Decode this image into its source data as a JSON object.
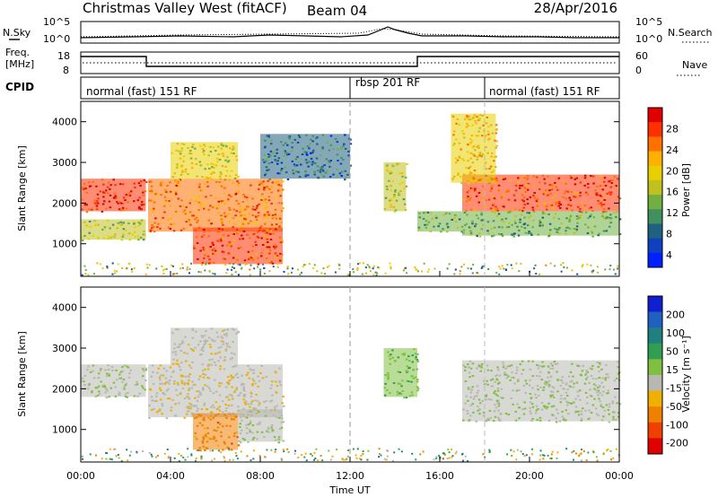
{
  "header": {
    "station": "Christmas Valley West (fitACF)",
    "beam": "Beam 04",
    "date": "28/Apr/2016"
  },
  "top_panels": {
    "nsky_label": "N.Sky",
    "nsky_ticks": [
      "10^5",
      "10^0"
    ],
    "nsearch_label": "N.Search",
    "freq_label_1": "Freq.",
    "freq_label_2": "[MHz]",
    "freq_ticks": [
      "18",
      "8"
    ],
    "nave_ticks": [
      "60",
      "0"
    ],
    "nave_label": "Nave",
    "cpid_label": "CPID",
    "cpid_segments": [
      {
        "text": "normal (fast) 151 RF",
        "start_hour": 0,
        "end_hour": 12
      },
      {
        "text": "rbsp 201 RF",
        "start_hour": 12,
        "end_hour": 18
      },
      {
        "text": "normal (fast) 151 RF",
        "start_hour": 18,
        "end_hour": 24
      }
    ]
  },
  "axes": {
    "y_label": "Slant Range [km]",
    "y_ticks": [
      "4000",
      "3000",
      "2000",
      "1000"
    ],
    "x_label": "Time UT",
    "x_ticks": [
      "00:00",
      "04:00",
      "08:00",
      "12:00",
      "16:00",
      "20:00",
      "00:00"
    ]
  },
  "colorbars": {
    "power": {
      "label": "Power [dB]",
      "ticks": [
        "28",
        "24",
        "20",
        "16",
        "12",
        "8",
        "4"
      ],
      "colors": [
        "#e00000",
        "#ff3000",
        "#ff7000",
        "#ffb000",
        "#e8d000",
        "#c0c020",
        "#70b040",
        "#409060",
        "#206080",
        "#1040c0",
        "#0020ff"
      ]
    },
    "velocity": {
      "label": "Velocity [m s⁻¹]",
      "ticks": [
        "200",
        "100",
        "50",
        "15",
        "-15",
        "-50",
        "-100",
        "-200"
      ],
      "colors": [
        "#1020d0",
        "#2060c0",
        "#208080",
        "#30a050",
        "#80c040",
        "#b8b8b0",
        "#f0b000",
        "#f08000",
        "#f04000",
        "#e00000"
      ]
    }
  },
  "chart_data": [
    {
      "type": "heatmap",
      "panel": "power",
      "x_range_hours": [
        0,
        24
      ],
      "y_range_km": [
        200,
        4500
      ],
      "bands": [
        {
          "start_hour": 0.0,
          "end_hour": 2.9,
          "range_km": [
            1800,
            2600
          ],
          "power_db": 28
        },
        {
          "start_hour": 0.0,
          "end_hour": 2.9,
          "range_km": [
            1100,
            1600
          ],
          "power_db": 16
        },
        {
          "start_hour": 3.0,
          "end_hour": 9.0,
          "range_km": [
            1300,
            2600
          ],
          "power_db": 24
        },
        {
          "start_hour": 5.0,
          "end_hour": 9.0,
          "range_km": [
            500,
            1400
          ],
          "power_db": 26
        },
        {
          "start_hour": 4.0,
          "end_hour": 7.0,
          "range_km": [
            2600,
            3500
          ],
          "power_db": 18
        },
        {
          "start_hour": 8.0,
          "end_hour": 12.0,
          "range_km": [
            2600,
            3700
          ],
          "power_db": 8
        },
        {
          "start_hour": 13.5,
          "end_hour": 14.5,
          "range_km": [
            1800,
            3000
          ],
          "power_db": 16
        },
        {
          "start_hour": 15.0,
          "end_hour": 17.0,
          "range_km": [
            1300,
            1800
          ],
          "power_db": 12
        },
        {
          "start_hour": 17.0,
          "end_hour": 24.0,
          "range_km": [
            1800,
            2700
          ],
          "power_db": 26
        },
        {
          "start_hour": 17.0,
          "end_hour": 24.0,
          "range_km": [
            1200,
            1800
          ],
          "power_db": 12
        },
        {
          "start_hour": 16.5,
          "end_hour": 18.5,
          "range_km": [
            2500,
            4200
          ],
          "power_db": 20
        }
      ]
    },
    {
      "type": "heatmap",
      "panel": "velocity",
      "x_range_hours": [
        0,
        24
      ],
      "y_range_km": [
        200,
        4500
      ],
      "bands": [
        {
          "start_hour": 0.0,
          "end_hour": 2.9,
          "range_km": [
            1800,
            2600
          ],
          "velocity_ms": 0
        },
        {
          "start_hour": 3.0,
          "end_hour": 9.0,
          "range_km": [
            1300,
            2600
          ],
          "velocity_ms": -40
        },
        {
          "start_hour": 5.0,
          "end_hour": 7.0,
          "range_km": [
            500,
            1400
          ],
          "velocity_ms": -120
        },
        {
          "start_hour": 7.0,
          "end_hour": 9.0,
          "range_km": [
            700,
            1500
          ],
          "velocity_ms": 0
        },
        {
          "start_hour": 4.0,
          "end_hour": 7.0,
          "range_km": [
            2600,
            3500
          ],
          "velocity_ms": -30
        },
        {
          "start_hour": 13.5,
          "end_hour": 15.0,
          "range_km": [
            1800,
            3000
          ],
          "velocity_ms": 40
        },
        {
          "start_hour": 17.0,
          "end_hour": 24.0,
          "range_km": [
            1800,
            2700
          ],
          "velocity_ms": 0
        },
        {
          "start_hour": 17.0,
          "end_hour": 24.0,
          "range_km": [
            1200,
            1800
          ],
          "velocity_ms": 0
        }
      ]
    }
  ]
}
